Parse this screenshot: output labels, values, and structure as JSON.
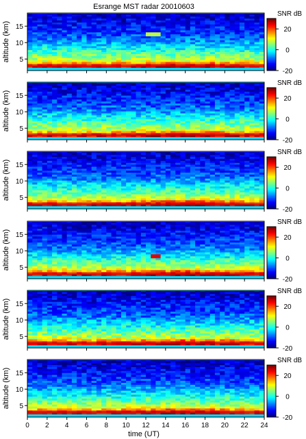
{
  "figure": {
    "title": "Esrange MST radar 20010603",
    "colorbar_label": "SNR dB",
    "xlabel": "time (UT)",
    "ylabel": "altitude (km)"
  },
  "chart_data": {
    "type": "heatmap",
    "title": "Esrange MST radar 20010603",
    "panel_count": 6,
    "xlabel": "time (UT)",
    "ylabel": "altitude (km)",
    "xlim": [
      0,
      24
    ],
    "ylim": [
      1.5,
      19
    ],
    "x_ticks": [
      0,
      2,
      4,
      6,
      8,
      10,
      12,
      14,
      16,
      18,
      20,
      22,
      24
    ],
    "y_ticks": [
      5,
      10,
      15
    ],
    "colorbar": {
      "label": "SNR dB",
      "range": [
        -20,
        30
      ],
      "ticks": [
        -20,
        0,
        20
      ],
      "colormap": "jet"
    },
    "grid": false,
    "time_resolution_h": 0.5,
    "altitude_resolution_km": 0.6,
    "typical_profile": {
      "altitude_km": [
        2.5,
        3.5,
        4.5,
        5.5,
        7,
        9,
        11,
        13,
        15,
        17,
        18.5
      ],
      "snr_db": [
        26,
        18,
        10,
        6,
        2,
        -3,
        -8,
        -11,
        -13,
        -15,
        -17
      ]
    },
    "features": [
      {
        "description_panel": 4,
        "time_ut": 13,
        "altitude_km": 8.5,
        "snr_db": 25
      },
      {
        "description_panel": 1,
        "time_ut": 12.8,
        "altitude_km": 12.5,
        "snr_db": 8
      }
    ]
  }
}
